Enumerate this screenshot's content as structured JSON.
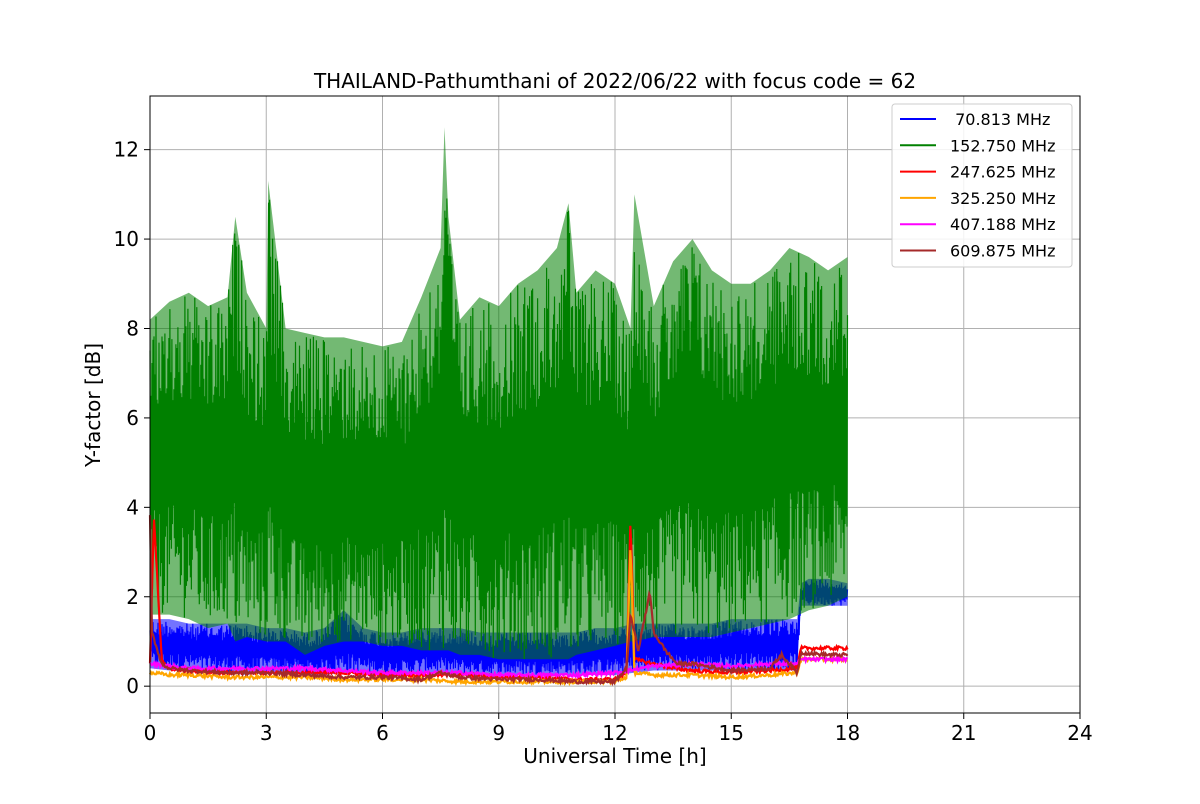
{
  "chart_data": {
    "type": "line",
    "title": "THAILAND-Pathumthani of 2022/06/22 with focus code = 62",
    "xlabel": "Universal Time [h]",
    "ylabel": "Y-factor [dB]",
    "xlim": [
      0,
      24
    ],
    "ylim": [
      -0.6,
      13.2
    ],
    "xticks": [
      0,
      3,
      6,
      9,
      12,
      15,
      18,
      21,
      24
    ],
    "yticks": [
      0,
      2,
      4,
      6,
      8,
      10,
      12
    ],
    "grid": true,
    "legend_position": "top-right",
    "series": [
      {
        "name": "70.813 MHz",
        "legend_label": " 70.813 MHz",
        "color": "#0000ff",
        "x": [
          0,
          0.5,
          1,
          1.5,
          2,
          2.5,
          3,
          3.5,
          4,
          4.5,
          5,
          5.5,
          6,
          6.5,
          7,
          7.5,
          8,
          8.5,
          9,
          9.5,
          10,
          10.5,
          11,
          11.5,
          12,
          12.5,
          13,
          13.5,
          14,
          14.5,
          15,
          15.5,
          16,
          16.5,
          16.7,
          16.8,
          17,
          17.5,
          18
        ],
        "low": [
          0.4,
          0.35,
          0.35,
          0.3,
          0.3,
          0.25,
          0.3,
          0.3,
          0.25,
          0.25,
          0.3,
          0.3,
          0.25,
          0.25,
          0.3,
          0.3,
          0.25,
          0.25,
          0.25,
          0.25,
          0.25,
          0.25,
          0.25,
          0.25,
          0.25,
          0.3,
          0.35,
          0.35,
          0.35,
          0.35,
          0.35,
          0.35,
          0.35,
          0.35,
          0.35,
          1.8,
          1.8,
          1.8,
          1.8
        ],
        "high": [
          1.5,
          1.5,
          1.4,
          1.4,
          1.4,
          1.4,
          1.3,
          1.3,
          1.2,
          1.3,
          1.7,
          1.3,
          1.2,
          1.2,
          1.3,
          1.3,
          1.3,
          1.2,
          1.2,
          1.2,
          1.2,
          1.2,
          1.2,
          1.3,
          1.3,
          1.4,
          1.4,
          1.4,
          1.4,
          1.4,
          1.5,
          1.5,
          1.5,
          1.5,
          1.5,
          2.3,
          2.4,
          2.4,
          2.3
        ]
      },
      {
        "name": "152.750 MHz",
        "legend_label": "152.750 MHz",
        "color": "#008000",
        "x": [
          0,
          0.5,
          1,
          1.5,
          2,
          2.2,
          2.5,
          3,
          3.05,
          3.5,
          4,
          4.5,
          5,
          5.5,
          6,
          6.5,
          7,
          7.5,
          7.6,
          7.7,
          8,
          8.5,
          9,
          9.5,
          10,
          10.5,
          10.8,
          11,
          11.5,
          12,
          12.4,
          12.5,
          13,
          13.5,
          14,
          14.5,
          15,
          15.5,
          16,
          16.5,
          17,
          17.5,
          18
        ],
        "low": [
          1.6,
          1.6,
          1.5,
          1.3,
          1.4,
          1.0,
          1.1,
          1.0,
          1.0,
          1.0,
          0.7,
          0.9,
          1.0,
          1.0,
          0.9,
          0.9,
          0.8,
          0.8,
          0.8,
          0.8,
          0.7,
          0.7,
          0.6,
          0.6,
          0.6,
          0.6,
          0.6,
          0.7,
          0.8,
          0.9,
          1.0,
          1.0,
          1.1,
          1.1,
          1.1,
          1.1,
          1.2,
          1.3,
          1.4,
          1.5,
          1.7,
          1.8,
          2.0
        ],
        "high": [
          8.2,
          8.6,
          8.8,
          8.5,
          8.7,
          10.5,
          8.8,
          8.0,
          11.3,
          8.0,
          7.9,
          7.8,
          7.8,
          7.7,
          7.6,
          7.7,
          8.7,
          9.8,
          12.5,
          10.5,
          8.2,
          8.7,
          8.5,
          9.0,
          9.3,
          9.8,
          10.8,
          8.8,
          9.3,
          9.0,
          8.0,
          11.0,
          8.5,
          9.5,
          10.0,
          9.3,
          9.0,
          9.0,
          9.3,
          9.8,
          9.6,
          9.3,
          9.6
        ]
      },
      {
        "name": "247.625 MHz",
        "legend_label": "247.625 MHz",
        "color": "#ff0000",
        "x": [
          0,
          0.1,
          0.3,
          0.5,
          1,
          2,
          3,
          4,
          5,
          6,
          7,
          8,
          9,
          10,
          11,
          12,
          12.3,
          12.4,
          12.5,
          13,
          13.5,
          14,
          15,
          16,
          16.7,
          16.8,
          17.5,
          18
        ],
        "y": [
          0.5,
          3.8,
          0.6,
          0.4,
          0.35,
          0.3,
          0.3,
          0.3,
          0.3,
          0.25,
          0.25,
          0.25,
          0.2,
          0.2,
          0.15,
          0.15,
          0.3,
          3.8,
          0.6,
          0.5,
          0.4,
          0.35,
          0.3,
          0.35,
          0.4,
          0.85,
          0.85,
          0.85
        ]
      },
      {
        "name": "325.250 MHz",
        "legend_label": "325.250 MHz",
        "color": "#ffa500",
        "x": [
          0,
          0.5,
          1,
          2,
          3,
          4,
          5,
          6,
          7,
          8,
          9,
          10,
          11,
          12,
          12.3,
          12.4,
          12.5,
          13,
          14,
          15,
          16,
          16.7,
          16.8,
          17.5,
          18
        ],
        "y": [
          0.3,
          0.25,
          0.25,
          0.2,
          0.2,
          0.2,
          0.15,
          0.15,
          0.15,
          0.1,
          0.1,
          0.1,
          0.1,
          0.1,
          0.2,
          3.2,
          0.3,
          0.25,
          0.25,
          0.2,
          0.25,
          0.3,
          0.6,
          0.6,
          0.6
        ]
      },
      {
        "name": "407.188 MHz",
        "legend_label": "407.188 MHz",
        "color": "#ff00ff",
        "x": [
          0,
          0.5,
          1,
          2,
          3,
          4,
          5,
          6,
          7,
          8,
          9,
          10,
          11,
          12,
          13,
          14,
          15,
          16,
          16.7,
          16.8,
          17.5,
          18
        ],
        "y": [
          0.5,
          0.45,
          0.4,
          0.4,
          0.4,
          0.4,
          0.35,
          0.3,
          0.3,
          0.3,
          0.25,
          0.25,
          0.25,
          0.3,
          0.45,
          0.5,
          0.45,
          0.5,
          0.5,
          0.6,
          0.6,
          0.6
        ]
      },
      {
        "name": "609.875 MHz",
        "legend_label": "609.875 MHz",
        "color": "#a52a2a",
        "x": [
          0,
          0.05,
          0.3,
          0.5,
          1,
          2,
          3,
          4,
          5,
          6,
          7,
          7.5,
          8,
          9,
          10,
          11,
          12,
          12.3,
          12.4,
          12.6,
          12.9,
          13,
          13.3,
          13.6,
          14,
          15,
          16,
          16.3,
          16.7,
          16.8,
          17.5,
          18
        ],
        "y": [
          3.8,
          1.2,
          0.5,
          0.4,
          0.35,
          0.3,
          0.3,
          0.25,
          0.2,
          0.2,
          0.15,
          0.3,
          0.2,
          0.15,
          0.15,
          0.1,
          0.1,
          0.4,
          1.6,
          0.8,
          2.1,
          1.2,
          0.8,
          0.5,
          0.5,
          0.35,
          0.4,
          0.7,
          0.3,
          0.75,
          0.7,
          0.7
        ]
      }
    ]
  }
}
